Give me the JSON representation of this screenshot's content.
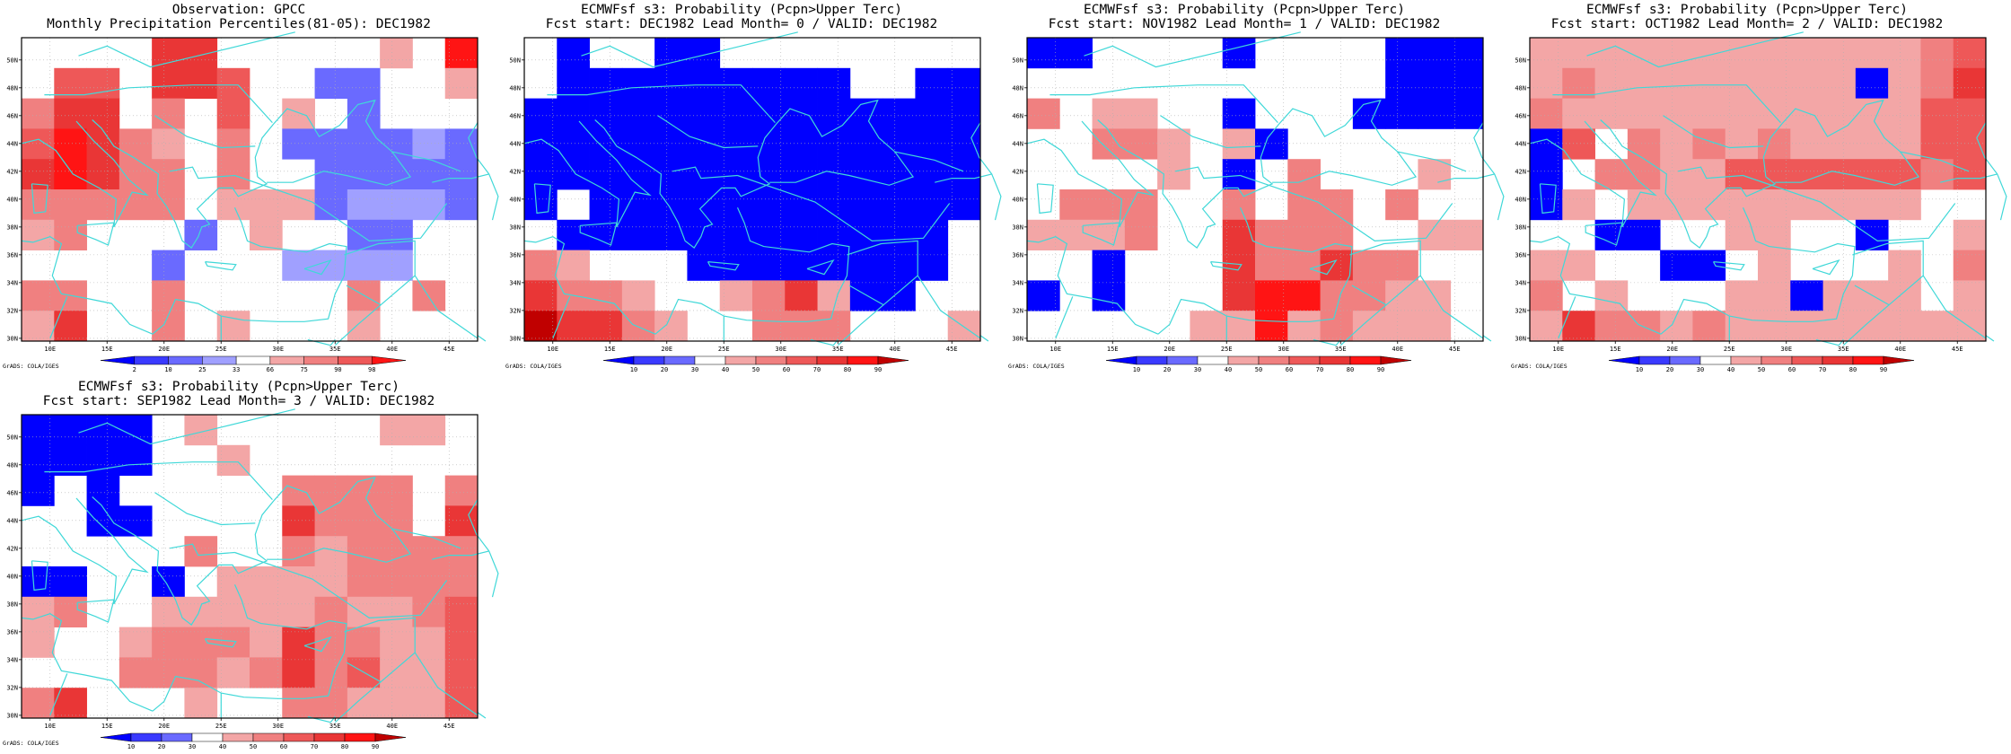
{
  "colors": {
    "blue_strong": "#0000ff",
    "blue_mid": "#3a3aff",
    "blue_light": "#6a6aff",
    "blue_pale": "#a0a0ff",
    "red_pale": "#f3a6a6",
    "red_light": "#f08080",
    "red_mid": "#ee5858",
    "red_strong": "#e93636",
    "red_deep": "#ff1414",
    "red_dark": "#c00000",
    "coast": "#40d8d8",
    "grid": "#b0b0b0"
  },
  "map_axes": {
    "lon_labels": [
      "10E",
      "15E",
      "20E",
      "25E",
      "30E",
      "35E",
      "40E",
      "45E"
    ],
    "lat_labels": [
      "30N",
      "32N",
      "34N",
      "36N",
      "38N",
      "40N",
      "42N",
      "44N",
      "46N",
      "48N",
      "50N"
    ]
  },
  "credit": "GrADS: COLA/IGES",
  "panels": [
    {
      "id": "obs",
      "title_line1": "Observation: GPCC",
      "title_line2": "Monthly Precipitation Percentiles(81-05): DEC1982",
      "colorbar_labels": [
        "2",
        "10",
        "25",
        "33",
        "66",
        "75",
        "90",
        "98"
      ],
      "colorbar_colors": [
        "#0000ff",
        "#3a3aff",
        "#6a6aff",
        "#a0a0ff",
        "#ffffff",
        "#f3a6a6",
        "#f08080",
        "#ee5858",
        "#ff1414"
      ]
    },
    {
      "id": "lead0",
      "title_line1": "ECMWFsf s3: Probability (Pcpn>Upper Terc)",
      "title_line2": "Fcst start: DEC1982  Lead Month= 0 / VALID: DEC1982",
      "colorbar_labels": [
        "10",
        "20",
        "30",
        "40",
        "50",
        "60",
        "70",
        "80",
        "90"
      ],
      "colorbar_colors": [
        "#0000ff",
        "#3a3aff",
        "#6a6aff",
        "#ffffff",
        "#f3a6a6",
        "#f08080",
        "#ee5858",
        "#e93636",
        "#ff1414",
        "#c00000"
      ]
    },
    {
      "id": "lead1",
      "title_line1": "ECMWFsf s3: Probability (Pcpn>Upper Terc)",
      "title_line2": "Fcst start: NOV1982  Lead Month= 1 / VALID: DEC1982",
      "colorbar_labels": [
        "10",
        "20",
        "30",
        "40",
        "50",
        "60",
        "70",
        "80",
        "90"
      ],
      "colorbar_colors": [
        "#0000ff",
        "#3a3aff",
        "#6a6aff",
        "#ffffff",
        "#f3a6a6",
        "#f08080",
        "#ee5858",
        "#e93636",
        "#ff1414",
        "#c00000"
      ]
    },
    {
      "id": "lead2",
      "title_line1": "ECMWFsf s3: Probability (Pcpn>Upper Terc)",
      "title_line2": "Fcst start: OCT1982  Lead Month= 2 / VALID: DEC1982",
      "colorbar_labels": [
        "10",
        "20",
        "30",
        "40",
        "50",
        "60",
        "70",
        "80",
        "90"
      ],
      "colorbar_colors": [
        "#0000ff",
        "#3a3aff",
        "#6a6aff",
        "#ffffff",
        "#f3a6a6",
        "#f08080",
        "#ee5858",
        "#e93636",
        "#ff1414",
        "#c00000"
      ]
    },
    {
      "id": "lead3",
      "title_line1": "ECMWFsf s3: Probability (Pcpn>Upper Terc)",
      "title_line2": "Fcst start: SEP1982  Lead Month= 3 / VALID: DEC1982",
      "colorbar_labels": [
        "10",
        "20",
        "30",
        "40",
        "50",
        "60",
        "70",
        "80",
        "90"
      ],
      "colorbar_colors": [
        "#0000ff",
        "#3a3aff",
        "#6a6aff",
        "#ffffff",
        "#f3a6a6",
        "#f08080",
        "#ee5858",
        "#e93636",
        "#ff1414",
        "#c00000"
      ]
    }
  ]
}
